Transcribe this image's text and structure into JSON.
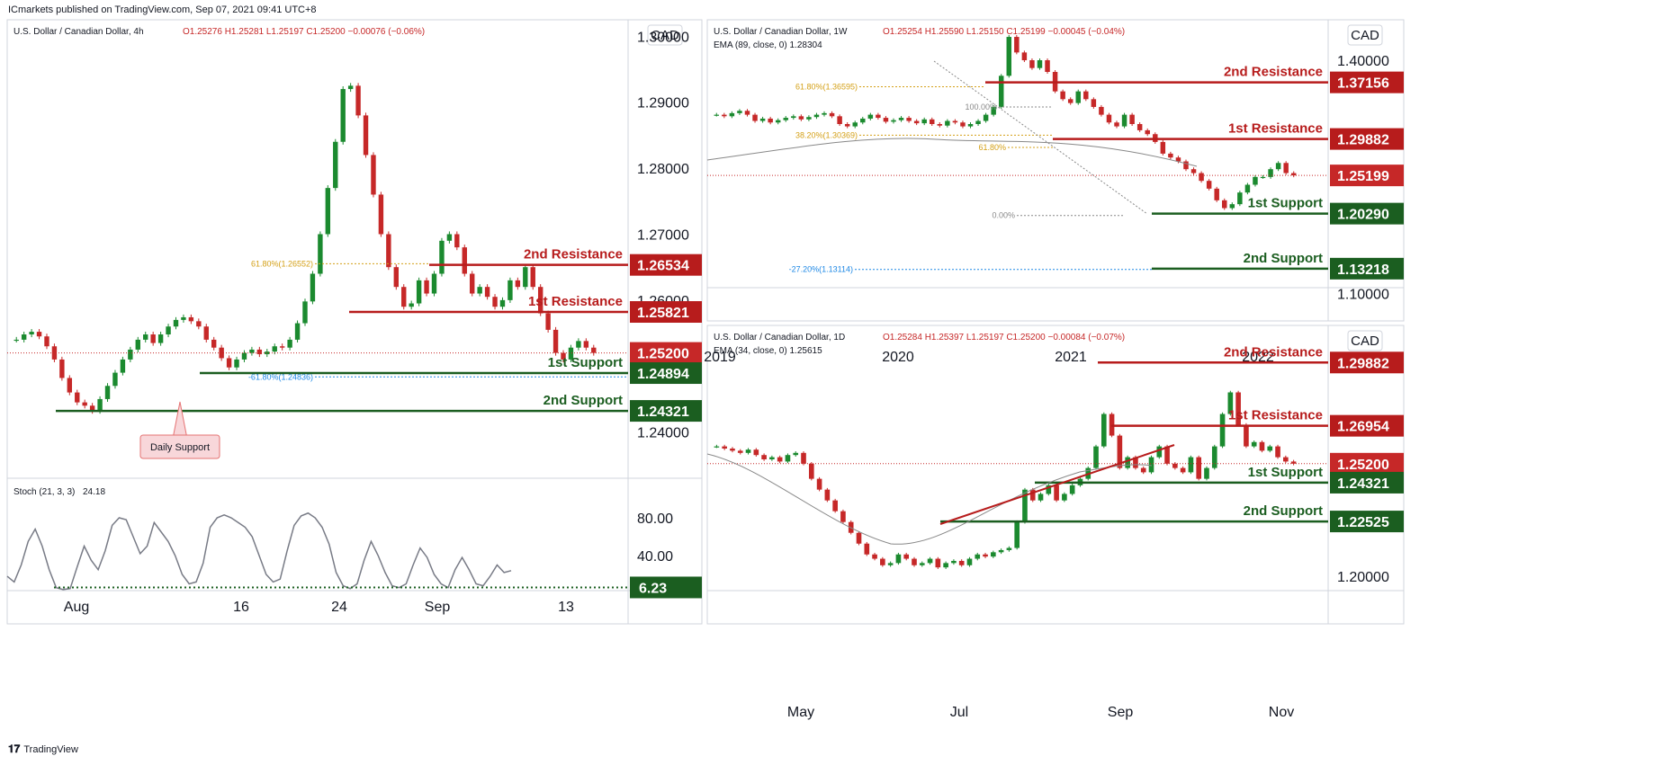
{
  "header": {
    "publisher": "ICmarkets published on TradingView.com, Sep 07, 2021 09:41 UTC+8"
  },
  "footer": {
    "brand": "TradingView"
  },
  "colors": {
    "resistance": "#b71c1c",
    "support": "#1b5e20",
    "price": "#c62828",
    "up": "#26a69a",
    "down": "#ef5350",
    "green_candle": "#1b8a2f",
    "red_candle": "#c62828"
  },
  "panels": [
    {
      "id": "h4",
      "symbol": "U.S. Dollar / Canadian Dollar, 4h",
      "ohlc": "O1.25276  H1.25281  L1.25197  C1.25200  −0.00076 (−0.06%)",
      "indicator": "",
      "currency": "CAD",
      "y_ticks": [
        {
          "value": 1.3,
          "label": "1.30000"
        },
        {
          "value": 1.29,
          "label": "1.29000"
        },
        {
          "value": 1.28,
          "label": "1.28000"
        },
        {
          "value": 1.27,
          "label": "1.27000"
        },
        {
          "value": 1.26,
          "label": "1.26000"
        },
        {
          "value": 1.24,
          "label": "1.24000"
        }
      ],
      "x_ticks": [
        "Aug",
        "16",
        "24",
        "Sep",
        "13"
      ],
      "levels": [
        {
          "name": "2nd Resistance",
          "value": 1.26534,
          "label": "1.26534",
          "kind": "resistance"
        },
        {
          "name": "1st Resistance",
          "value": 1.25821,
          "label": "1.25821",
          "kind": "resistance"
        },
        {
          "name": "",
          "value": 1.252,
          "label": "1.25200",
          "kind": "price"
        },
        {
          "name": "1st Support",
          "value": 1.24894,
          "label": "1.24894",
          "kind": "support"
        },
        {
          "name": "2nd Support",
          "value": 1.24321,
          "label": "1.24321",
          "kind": "support"
        }
      ],
      "fib": [
        {
          "label": "61.80%(1.26552)",
          "value": 1.26552
        },
        {
          "label": "-61.80%(1.24836)",
          "value": 1.24836
        }
      ],
      "callout": "Daily Support",
      "stoch": {
        "title": "Stoch (21, 3, 3)",
        "value_text": "24.18",
        "ticks": [
          "80.00",
          "40.00"
        ],
        "level_label": "6.23",
        "values": [
          18,
          12,
          30,
          55,
          68,
          50,
          25,
          6,
          4,
          5,
          28,
          50,
          35,
          25,
          45,
          72,
          80,
          78,
          60,
          42,
          50,
          75,
          65,
          55,
          40,
          20,
          10,
          12,
          32,
          70,
          80,
          83,
          80,
          75,
          70,
          60,
          40,
          20,
          12,
          15,
          45,
          72,
          82,
          85,
          80,
          70,
          52,
          22,
          8,
          5,
          10,
          35,
          55,
          40,
          22,
          8,
          6,
          10,
          30,
          48,
          38,
          20,
          10,
          6,
          25,
          38,
          25,
          10,
          8,
          18,
          30,
          22,
          24
        ]
      },
      "chart_data": {
        "type": "candlestick",
        "ylim": [
          1.233,
          1.3025
        ],
        "closes": [
          1.254,
          1.2548,
          1.2552,
          1.2545,
          1.253,
          1.251,
          1.2482,
          1.246,
          1.2445,
          1.244,
          1.2432,
          1.245,
          1.247,
          1.249,
          1.251,
          1.2525,
          1.254,
          1.2548,
          1.2535,
          1.2548,
          1.256,
          1.257,
          1.2574,
          1.2568,
          1.256,
          1.254,
          1.2528,
          1.2512,
          1.2498,
          1.251,
          1.252,
          1.2525,
          1.2518,
          1.2522,
          1.253,
          1.2528,
          1.254,
          1.2565,
          1.2598,
          1.264,
          1.27,
          1.277,
          1.284,
          1.292,
          1.2925,
          1.288,
          1.282,
          1.276,
          1.27,
          1.265,
          1.262,
          1.259,
          1.2595,
          1.263,
          1.261,
          1.264,
          1.269,
          1.27,
          1.268,
          1.264,
          1.261,
          1.262,
          1.2605,
          1.259,
          1.26,
          1.263,
          1.262,
          1.265,
          1.262,
          1.258,
          1.2555,
          1.252,
          1.251,
          1.2528,
          1.2538,
          1.2528,
          1.252
        ]
      }
    },
    {
      "id": "w1",
      "symbol": "U.S. Dollar / Canadian Dollar, 1W",
      "ohlc": "O1.25254  H1.25590  L1.25150  C1.25199  −0.00045 (−0.04%)",
      "indicator": "EMA (89, close, 0)  1.28304",
      "currency": "CAD",
      "y_ticks": [
        {
          "value": 1.4,
          "label": "1.40000"
        },
        {
          "value": 1.1,
          "label": "1.10000"
        }
      ],
      "x_ticks": [
        "2019",
        "2020",
        "2021",
        "2022"
      ],
      "levels": [
        {
          "name": "2nd Resistance",
          "value": 1.37156,
          "label": "1.37156",
          "kind": "resistance"
        },
        {
          "name": "1st Resistance",
          "value": 1.29882,
          "label": "1.29882",
          "kind": "resistance"
        },
        {
          "name": "",
          "value": 1.25199,
          "label": "1.25199",
          "kind": "price"
        },
        {
          "name": "1st Support",
          "value": 1.2029,
          "label": "1.20290",
          "kind": "support"
        },
        {
          "name": "2nd Support",
          "value": 1.13218,
          "label": "1.13218",
          "kind": "support"
        }
      ],
      "fib": [
        {
          "label": "61.80%(1.36595)",
          "value": 1.36595
        },
        {
          "label": "100.00%",
          "value": 1.34
        },
        {
          "label": "38.20%(1.30369)",
          "value": 1.30369
        },
        {
          "label": "61.80%",
          "value": 1.288
        },
        {
          "label": "0.00%",
          "value": 1.2005
        },
        {
          "label": "-27.20%(1.13114)",
          "value": 1.13114
        }
      ],
      "chart_data": {
        "type": "candlestick",
        "ylim": [
          1.065,
          1.452
        ],
        "closes": [
          1.33,
          1.328,
          1.332,
          1.335,
          1.33,
          1.322,
          1.325,
          1.32,
          1.323,
          1.326,
          1.328,
          1.324,
          1.327,
          1.33,
          1.332,
          1.328,
          1.318,
          1.315,
          1.32,
          1.325,
          1.33,
          1.326,
          1.321,
          1.323,
          1.326,
          1.322,
          1.319,
          1.324,
          1.318,
          1.316,
          1.322,
          1.32,
          1.315,
          1.318,
          1.322,
          1.33,
          1.34,
          1.38,
          1.43,
          1.41,
          1.4,
          1.39,
          1.4,
          1.385,
          1.36,
          1.35,
          1.345,
          1.36,
          1.35,
          1.34,
          1.33,
          1.32,
          1.315,
          1.33,
          1.318,
          1.31,
          1.305,
          1.295,
          1.28,
          1.275,
          1.27,
          1.26,
          1.255,
          1.245,
          1.235,
          1.22,
          1.21,
          1.215,
          1.23,
          1.24,
          1.25,
          1.25,
          1.26,
          1.268,
          1.255,
          1.252
        ]
      }
    },
    {
      "id": "d1",
      "symbol": "U.S. Dollar / Canadian Dollar, 1D",
      "ohlc": "O1.25284  H1.25397  L1.25197  C1.25200  −0.00084 (−0.07%)",
      "indicator": "EMA (34, close, 0)  1.25615",
      "currency": "CAD",
      "y_ticks": [
        {
          "value": 1.2,
          "label": "1.20000"
        }
      ],
      "x_ticks": [
        "May",
        "Jul",
        "Sep",
        "Nov"
      ],
      "levels": [
        {
          "name": "2nd Resistance",
          "value": 1.29882,
          "label": "1.29882",
          "kind": "resistance"
        },
        {
          "name": "1st Resistance",
          "value": 1.26954,
          "label": "1.26954",
          "kind": "resistance"
        },
        {
          "name": "",
          "value": 1.252,
          "label": "1.25200",
          "kind": "price"
        },
        {
          "name": "1st Support",
          "value": 1.24321,
          "label": "1.24321",
          "kind": "support"
        },
        {
          "name": "2nd Support",
          "value": 1.22525,
          "label": "1.22525",
          "kind": "support"
        }
      ],
      "fib": [],
      "chart_data": {
        "type": "candlestick",
        "ylim": [
          1.192,
          1.316
        ],
        "closes": [
          1.26,
          1.259,
          1.258,
          1.257,
          1.2585,
          1.256,
          1.254,
          1.255,
          1.253,
          1.256,
          1.257,
          1.252,
          1.245,
          1.24,
          1.235,
          1.23,
          1.225,
          1.22,
          1.215,
          1.21,
          1.208,
          1.205,
          1.206,
          1.21,
          1.208,
          1.205,
          1.206,
          1.208,
          1.204,
          1.206,
          1.207,
          1.205,
          1.208,
          1.21,
          1.209,
          1.211,
          1.212,
          1.213,
          1.225,
          1.24,
          1.235,
          1.238,
          1.242,
          1.235,
          1.238,
          1.242,
          1.245,
          1.25,
          1.26,
          1.275,
          1.265,
          1.25,
          1.255,
          1.25,
          1.248,
          1.255,
          1.26,
          1.252,
          1.25,
          1.248,
          1.255,
          1.245,
          1.25,
          1.26,
          1.275,
          1.285,
          1.27,
          1.26,
          1.262,
          1.258,
          1.26,
          1.255,
          1.253,
          1.252
        ]
      }
    }
  ]
}
